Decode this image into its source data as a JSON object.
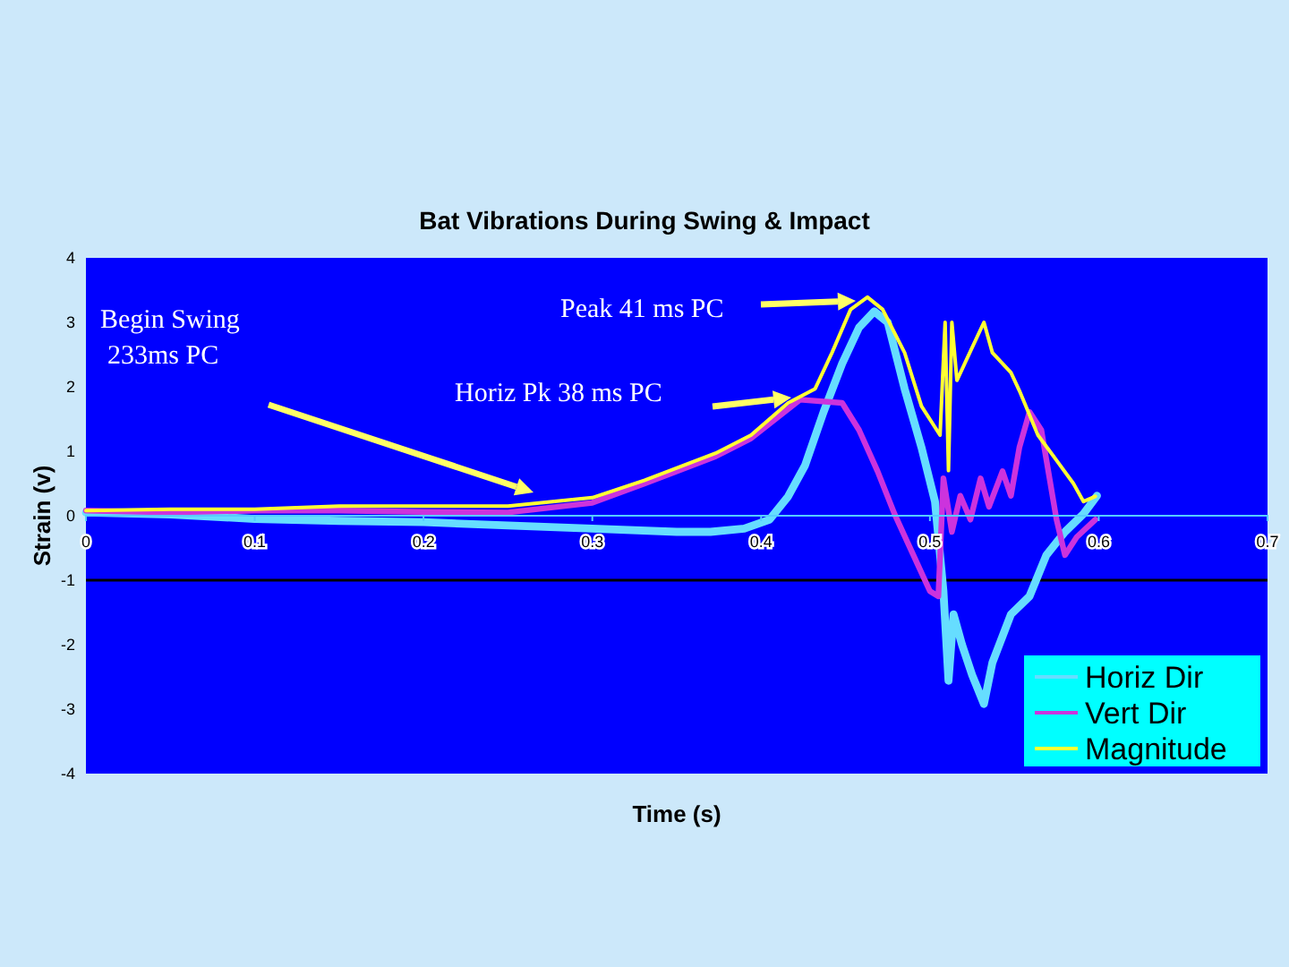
{
  "chart_data": {
    "type": "line",
    "title": "Bat Vibrations During Swing & Impact",
    "xlabel": "Time (s)",
    "ylabel": "Strain (v)",
    "xlim": [
      0,
      0.7
    ],
    "xticks": [
      0,
      0.1,
      0.2,
      0.3,
      0.4,
      0.5,
      0.6,
      0.7
    ],
    "ylim": [
      -4,
      4
    ],
    "yticks": [
      -4,
      -3,
      -2,
      -1,
      0,
      1,
      2,
      3,
      4
    ],
    "grid": false,
    "legend": "bottom right",
    "marker": "none",
    "line_style": "solid",
    "ref_lines": [
      {
        "axis": "y",
        "value": -1,
        "color": "#000000"
      }
    ],
    "annotations": [
      "Begin Swing\n233ms PC",
      "Peak 41 ms PC",
      "Horiz Pk 38 ms PC"
    ],
    "series": [
      {
        "name": "Horiz Dir",
        "color": "#66ddff",
        "x": [
          0,
          0.05,
          0.1,
          0.15,
          0.2,
          0.25,
          0.3,
          0.35,
          0.37,
          0.39,
          0.405,
          0.416,
          0.426,
          0.437,
          0.448,
          0.458,
          0.467,
          0.475,
          0.485,
          0.495,
          0.503,
          0.506,
          0.508,
          0.511,
          0.514,
          0.519,
          0.525,
          0.532,
          0.537,
          0.548,
          0.559,
          0.569,
          0.58,
          0.591,
          0.599
        ],
        "values": [
          0.05,
          0.02,
          -0.05,
          -0.08,
          -0.1,
          -0.15,
          -0.2,
          -0.25,
          -0.25,
          -0.2,
          -0.06,
          0.3,
          0.78,
          1.61,
          2.36,
          2.92,
          3.17,
          3.0,
          1.97,
          1.06,
          0.22,
          -0.61,
          -1.17,
          -2.56,
          -1.53,
          -2.0,
          -2.47,
          -2.92,
          -2.28,
          -1.53,
          -1.25,
          -0.61,
          -0.25,
          0.03,
          0.31
        ]
      },
      {
        "name": "Vert Dir",
        "color": "#cc33dd",
        "x": [
          0,
          0.05,
          0.1,
          0.15,
          0.2,
          0.25,
          0.3,
          0.331,
          0.373,
          0.394,
          0.423,
          0.448,
          0.458,
          0.469,
          0.479,
          0.49,
          0.5,
          0.505,
          0.508,
          0.513,
          0.518,
          0.524,
          0.53,
          0.535,
          0.543,
          0.548,
          0.553,
          0.559,
          0.566,
          0.575,
          0.58,
          0.587,
          0.598
        ],
        "values": [
          0.08,
          0.05,
          0.08,
          0.08,
          0.06,
          0.05,
          0.2,
          0.5,
          0.92,
          1.2,
          1.8,
          1.75,
          1.33,
          0.69,
          0.03,
          -0.6,
          -1.17,
          -1.25,
          0.58,
          -0.25,
          0.31,
          -0.06,
          0.58,
          0.14,
          0.69,
          0.31,
          1.06,
          1.61,
          1.33,
          -0.06,
          -0.61,
          -0.33,
          -0.06
        ]
      },
      {
        "name": "Magnitude",
        "color": "#ffff33",
        "x": [
          0,
          0.05,
          0.1,
          0.15,
          0.2,
          0.25,
          0.3,
          0.331,
          0.373,
          0.394,
          0.416,
          0.432,
          0.442,
          0.453,
          0.463,
          0.472,
          0.485,
          0.495,
          0.506,
          0.509,
          0.511,
          0.513,
          0.516,
          0.522,
          0.532,
          0.537,
          0.548,
          0.553,
          0.564,
          0.575,
          0.585,
          0.591,
          0.598
        ],
        "values": [
          0.08,
          0.1,
          0.1,
          0.15,
          0.15,
          0.15,
          0.28,
          0.55,
          0.97,
          1.25,
          1.75,
          1.97,
          2.53,
          3.2,
          3.39,
          3.2,
          2.53,
          1.7,
          1.25,
          3.0,
          0.7,
          3.0,
          2.1,
          2.44,
          3.0,
          2.53,
          2.22,
          1.94,
          1.25,
          0.86,
          0.5,
          0.22,
          0.3
        ]
      }
    ]
  }
}
